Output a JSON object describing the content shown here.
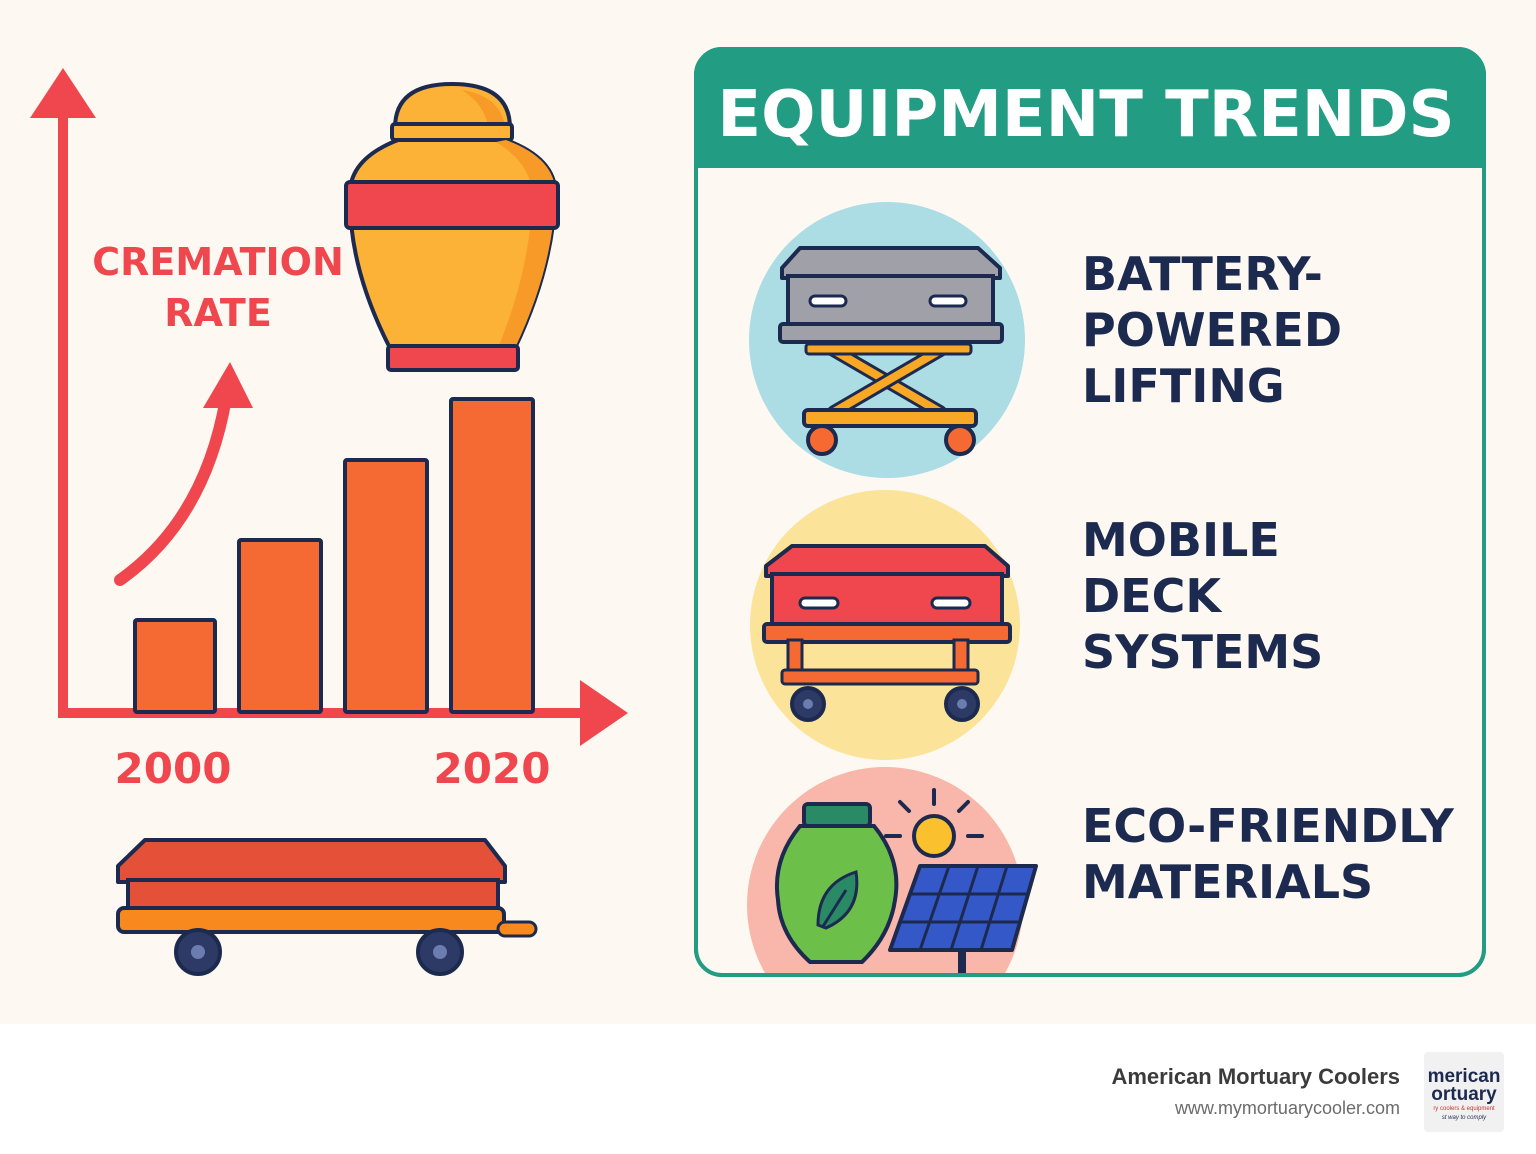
{
  "left_panel": {
    "axis_label_line1": "CREMATION",
    "axis_label_line2": "RATE",
    "x_start_label": "2000",
    "x_end_label": "2020"
  },
  "trends_panel": {
    "title": "EQUIPMENT TRENDS",
    "items": [
      {
        "label_lines": [
          "BATTERY-",
          "POWERED",
          "LIFTING"
        ],
        "icon": "scissor-lift-casket-icon"
      },
      {
        "label_lines": [
          "MOBILE",
          "DECK",
          "SYSTEMS"
        ],
        "icon": "casket-cart-icon"
      },
      {
        "label_lines": [
          "ECO-FRIENDLY",
          "MATERIALS"
        ],
        "icon": "eco-urn-solar-icon"
      }
    ]
  },
  "footer": {
    "company": "American Mortuary Coolers",
    "url": "www.mymortuarycooler.com",
    "logo_line1": "merican",
    "logo_line2": "ortuary",
    "logo_tag1": "ry coolers & equipment",
    "logo_tag2": "st way to comply"
  },
  "colors": {
    "background": "#fdf9f2",
    "accent_red": "#f0474e",
    "bar_orange": "#f56a32",
    "teal": "#229c82",
    "navy": "#1d2a4f",
    "urn_yellow": "#fbb236"
  }
}
